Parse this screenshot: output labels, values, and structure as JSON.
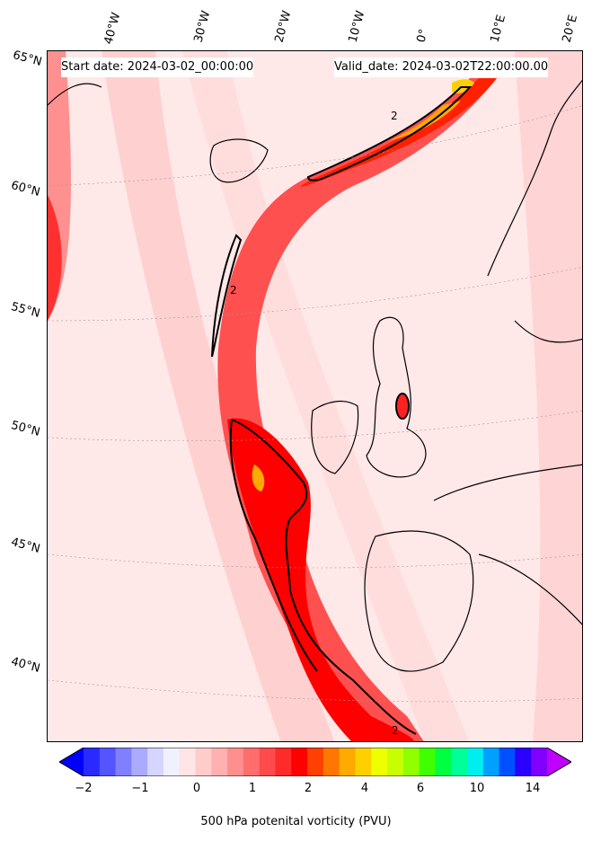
{
  "header": {
    "start_date": "Start date: 2024-03-02_00:00:00",
    "valid_date": "Valid_date: 2024-03-02T22:00:00.00"
  },
  "lat_labels": [
    "65°N",
    "60°N",
    "55°N",
    "50°N",
    "45°N",
    "40°N"
  ],
  "lon_labels": [
    "40°W",
    "30°W",
    "20°W",
    "10°W",
    "0°",
    "10°E",
    "20°E"
  ],
  "contour_label": "2",
  "colorbar": {
    "label": "500 hPa potenital vorticity (PVU)",
    "ticks": [
      "−2",
      "−1",
      "0",
      "1",
      "2",
      "4",
      "6",
      "10",
      "14"
    ],
    "colors": [
      "#0000ff",
      "#2a2aff",
      "#5555ff",
      "#8080ff",
      "#aaaaff",
      "#d5d5ff",
      "#f0f0ff",
      "#ffe5e5",
      "#ffcccc",
      "#ffb0b0",
      "#ff8f8f",
      "#ff6d6d",
      "#ff4b4b",
      "#ff2a2a",
      "#ff0000",
      "#ff4000",
      "#ff7700",
      "#ffaa00",
      "#ffd000",
      "#eeff00",
      "#c8ff00",
      "#90ff00",
      "#40ff00",
      "#00ff40",
      "#00ff99",
      "#00eeee",
      "#00a0ff",
      "#0050ff",
      "#2a00ff",
      "#8000ff",
      "#c000ff"
    ]
  }
}
